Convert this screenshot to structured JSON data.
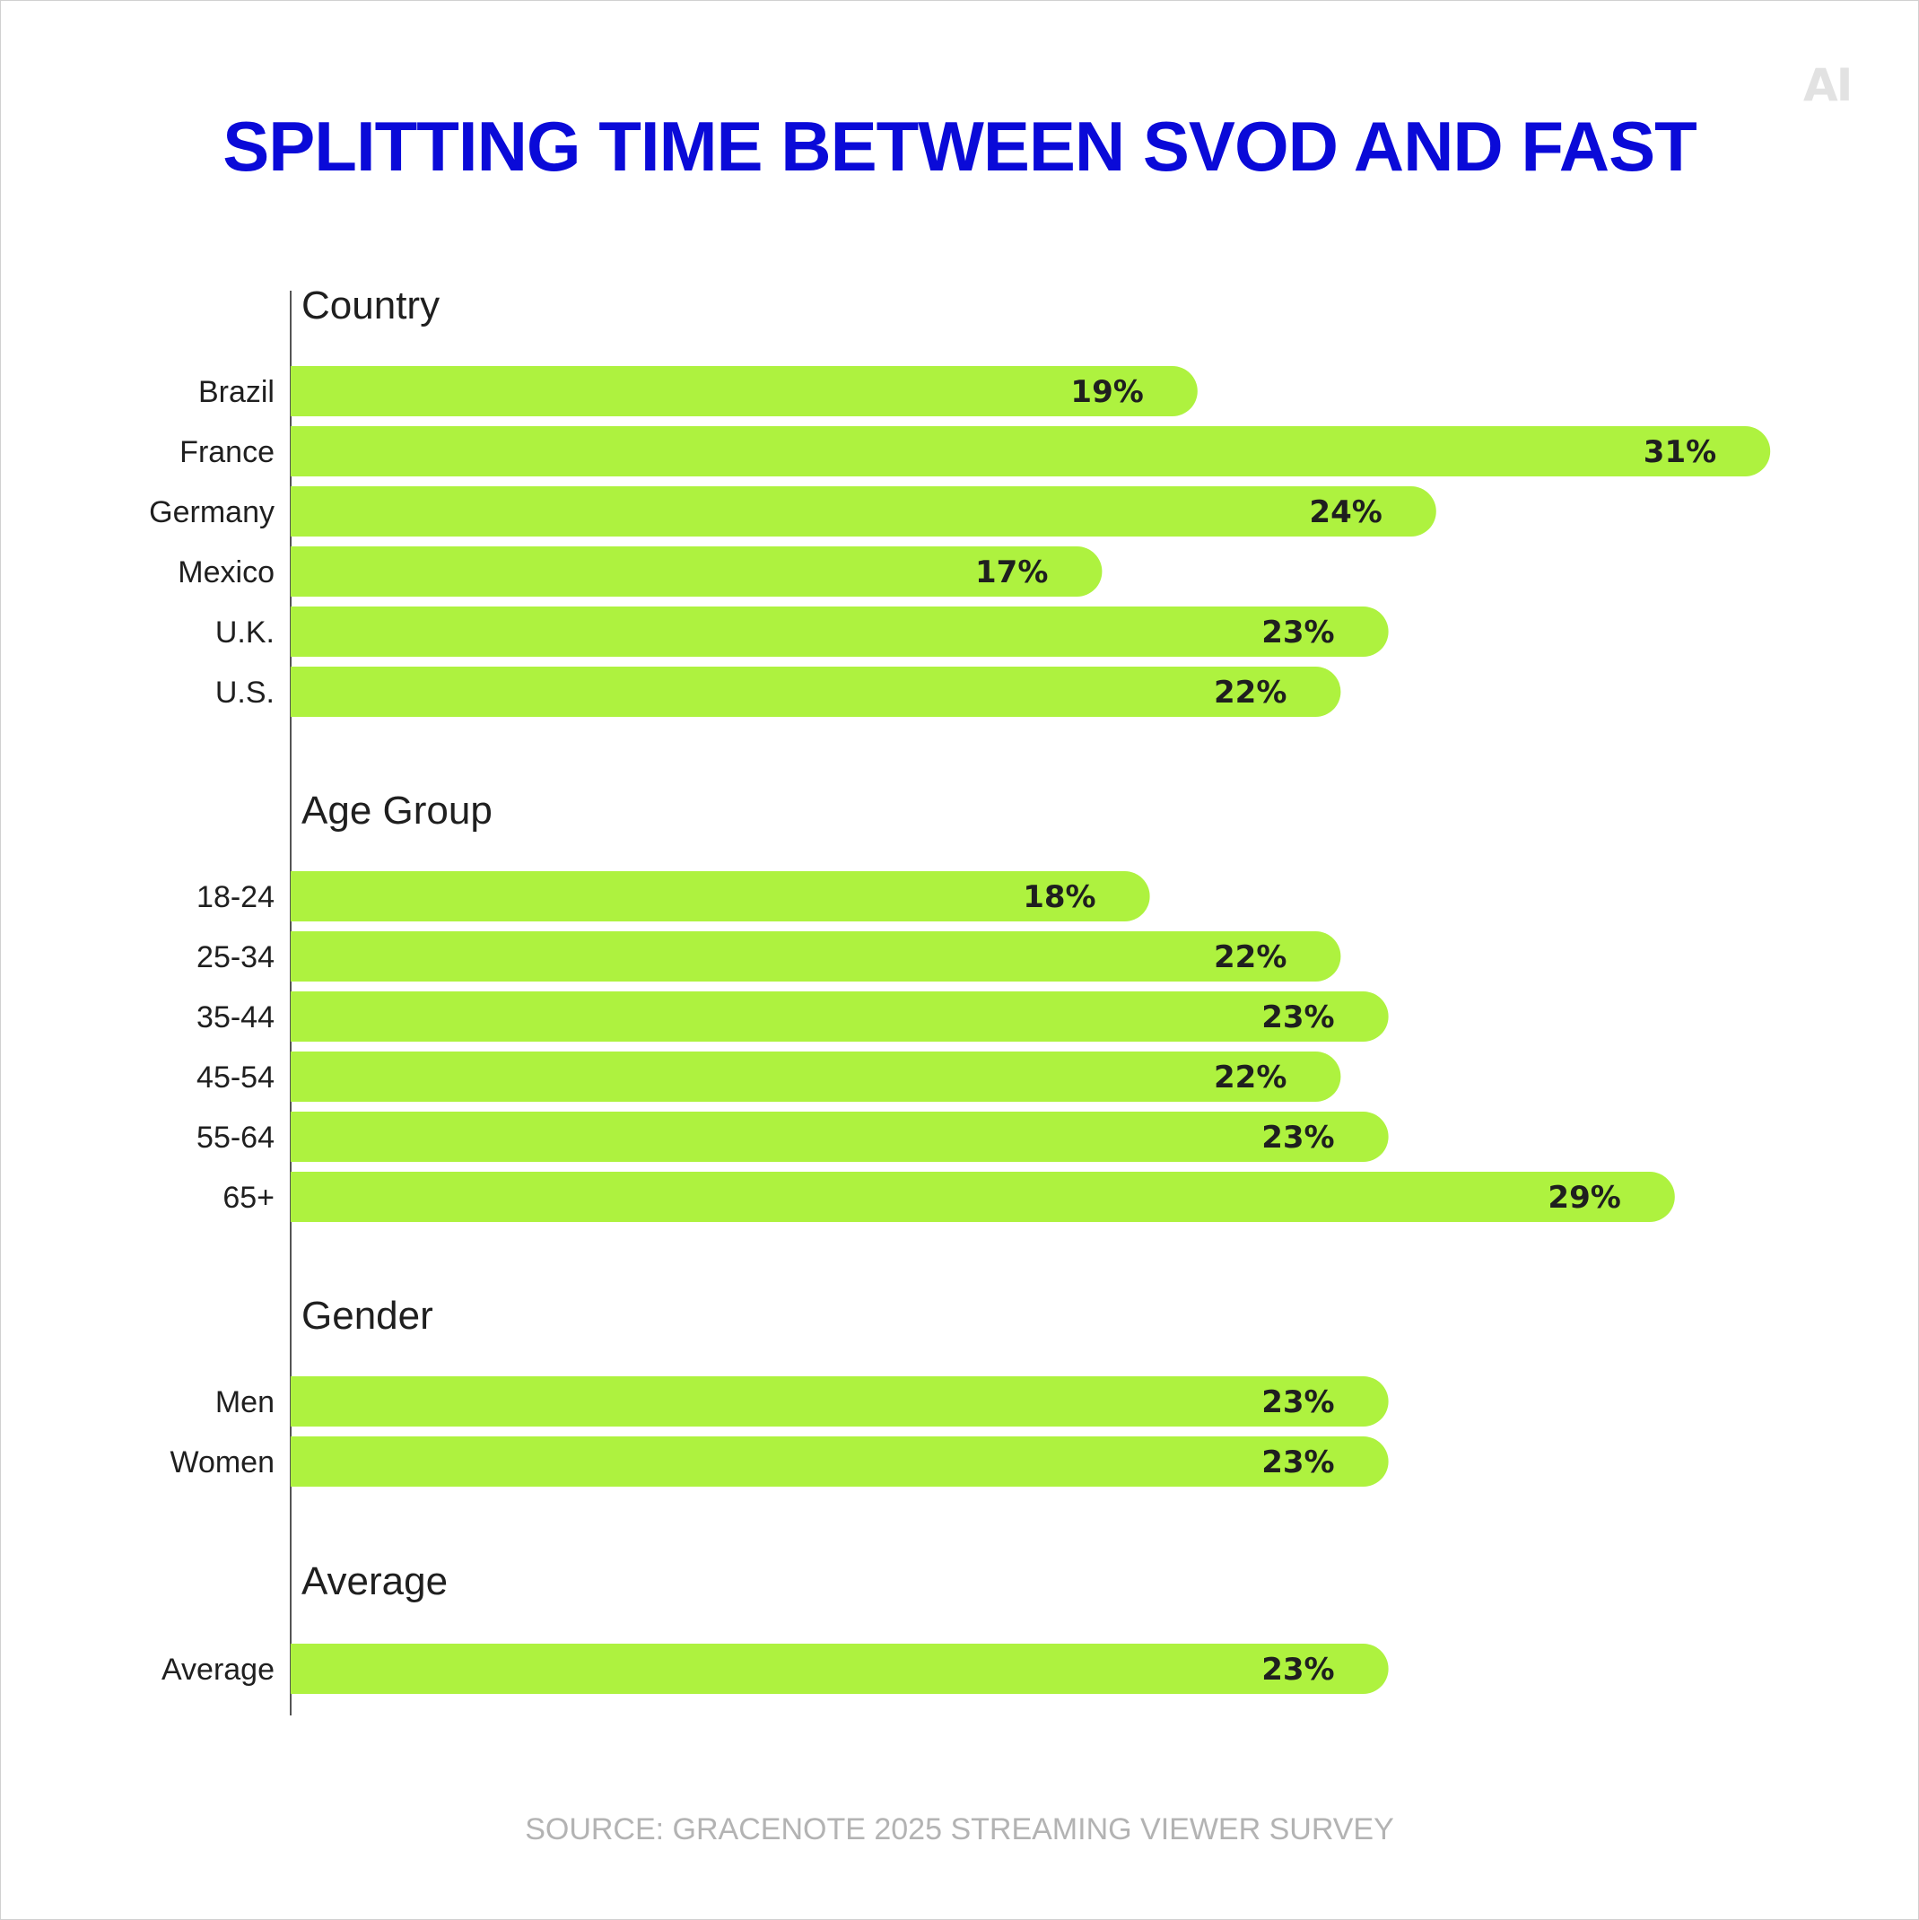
{
  "title": "SPLITTING TIME BETWEEN SVOD AND FAST",
  "logo_text": "AI",
  "source": "SOURCE:  GRACENOTE 2025 STREAMING VIEWER SURVEY",
  "colors": {
    "title": "#0a0ad8",
    "bar": "#aef23f",
    "label": "#1f1f1f",
    "source": "#b3b3b3"
  },
  "chart_data": {
    "type": "bar",
    "orientation": "horizontal",
    "value_format": "percent",
    "groups": [
      {
        "name": "Country",
        "categories": [
          "Brazil",
          "France",
          "Germany",
          "Mexico",
          "U.K.",
          "U.S."
        ],
        "values": [
          19,
          31,
          24,
          17,
          23,
          22
        ]
      },
      {
        "name": "Age Group",
        "categories": [
          "18-24",
          "25-34",
          "35-44",
          "45-54",
          "55-64",
          "65+"
        ],
        "values": [
          18,
          22,
          23,
          22,
          23,
          29
        ]
      },
      {
        "name": "Gender",
        "categories": [
          "Men",
          "Women"
        ],
        "values": [
          23,
          23
        ]
      },
      {
        "name": "Average",
        "categories": [
          "Average"
        ],
        "values": [
          23
        ]
      }
    ]
  }
}
